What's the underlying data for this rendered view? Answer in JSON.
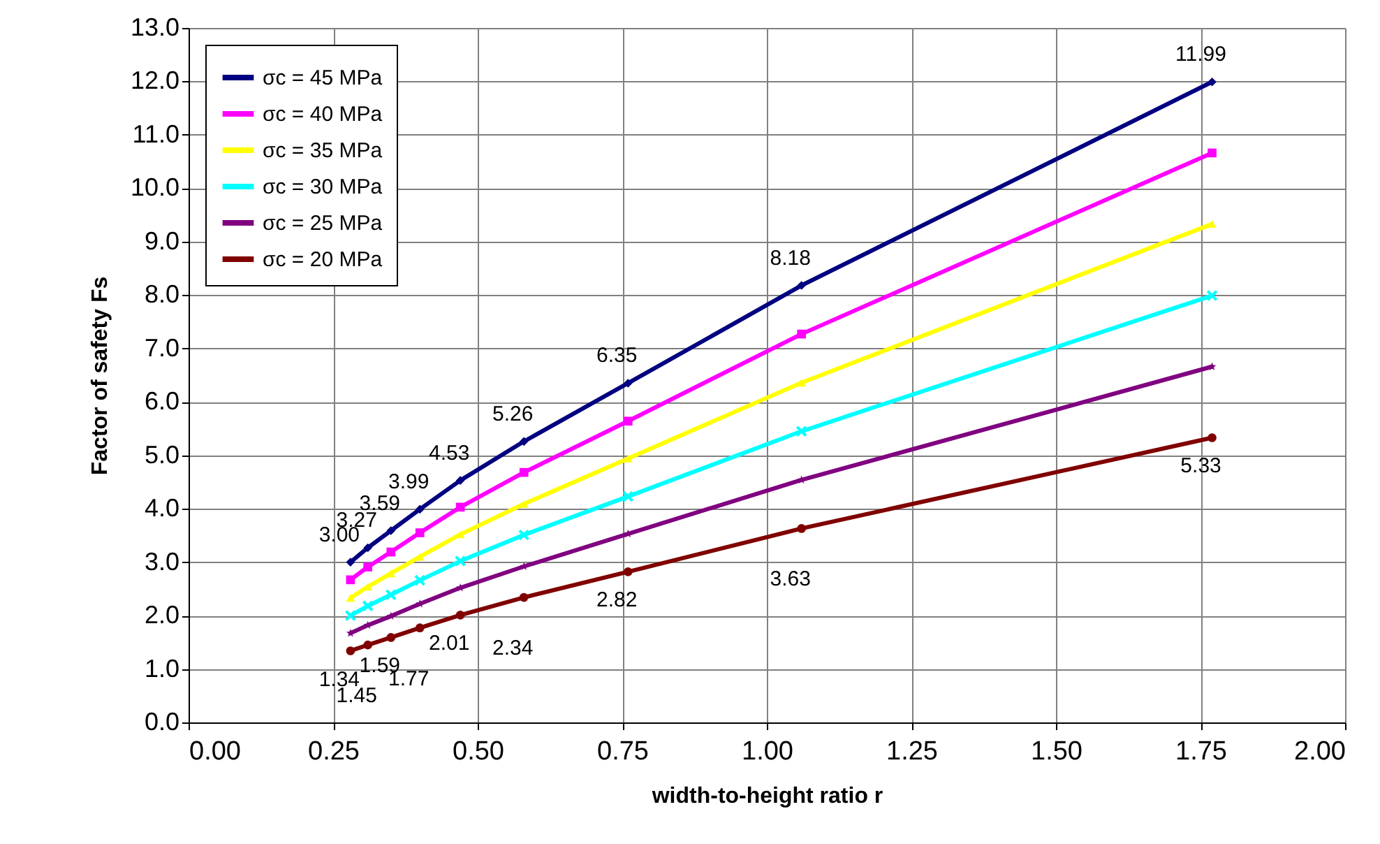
{
  "chart_data": {
    "type": "line",
    "xlabel": "width-to-height ratio r",
    "ylabel": "Factor of safety  Fs",
    "x": [
      0.28,
      0.31,
      0.35,
      0.4,
      0.47,
      0.58,
      0.76,
      1.06,
      1.77
    ],
    "xlim": [
      0,
      2
    ],
    "xticks": [
      {
        "value": 0,
        "label": "0.00"
      },
      {
        "value": 0.25,
        "label": "0.25"
      },
      {
        "value": 0.5,
        "label": "0.50"
      },
      {
        "value": 0.75,
        "label": "0.75"
      },
      {
        "value": 1,
        "label": "1.00"
      },
      {
        "value": 1.25,
        "label": "1.25"
      },
      {
        "value": 1.5,
        "label": "1.50"
      },
      {
        "value": 1.75,
        "label": "1.75"
      },
      {
        "value": 2,
        "label": "2.00"
      }
    ],
    "ylim": [
      0,
      13
    ],
    "yticks": [
      {
        "value": 0,
        "label": "0.0"
      },
      {
        "value": 1,
        "label": "1.0"
      },
      {
        "value": 2,
        "label": "2.0"
      },
      {
        "value": 3,
        "label": "3.0"
      },
      {
        "value": 4,
        "label": "4.0"
      },
      {
        "value": 5,
        "label": "5.0"
      },
      {
        "value": 6,
        "label": "6.0"
      },
      {
        "value": 7,
        "label": "7.0"
      },
      {
        "value": 8,
        "label": "8.0"
      },
      {
        "value": 9,
        "label": "9.0"
      },
      {
        "value": 10,
        "label": "10.0"
      },
      {
        "value": 11,
        "label": "11.0"
      },
      {
        "value": 12,
        "label": "12.0"
      },
      {
        "value": 13,
        "label": "13.0"
      }
    ],
    "grid": true,
    "legend": "top left",
    "line_style": "solid",
    "series": [
      {
        "name": "σc = 45 MPa",
        "color": "#000080",
        "marker": "diamond",
        "values": [
          3.0,
          3.27,
          3.59,
          3.99,
          4.53,
          5.26,
          6.35,
          8.18,
          11.99
        ],
        "value_labels": [
          "3.00",
          "3.27",
          "3.59",
          "3.99",
          "4.53",
          "5.26",
          "6.35",
          "8.18",
          "11.99"
        ]
      },
      {
        "name": "σc = 40 MPa",
        "color": "#ff00ff",
        "marker": "square",
        "values": [
          2.67,
          2.91,
          3.19,
          3.55,
          4.03,
          4.68,
          5.64,
          7.27,
          10.66
        ]
      },
      {
        "name": "σc = 35 MPa",
        "color": "#ffff00",
        "marker": "triangle",
        "values": [
          2.33,
          2.54,
          2.79,
          3.1,
          3.52,
          4.09,
          4.94,
          6.36,
          9.33
        ]
      },
      {
        "name": "σc = 30 MPa",
        "color": "#00ffff",
        "marker": "cross",
        "values": [
          2.0,
          2.18,
          2.39,
          2.66,
          3.02,
          3.51,
          4.23,
          5.45,
          7.99
        ]
      },
      {
        "name": "σc = 25 MPa",
        "color": "#800080",
        "marker": "star",
        "values": [
          1.67,
          1.82,
          1.99,
          2.22,
          2.52,
          2.92,
          3.53,
          4.54,
          6.66
        ]
      },
      {
        "name": "σc = 20 MPa",
        "color": "#800000",
        "marker": "circle",
        "values": [
          1.34,
          1.45,
          1.59,
          1.77,
          2.01,
          2.34,
          2.82,
          3.63,
          5.33
        ],
        "value_labels": [
          "1.34",
          "1.45",
          "1.59",
          "1.77",
          "2.01",
          "2.34",
          "2.82",
          "3.63",
          "5.33"
        ]
      }
    ]
  }
}
